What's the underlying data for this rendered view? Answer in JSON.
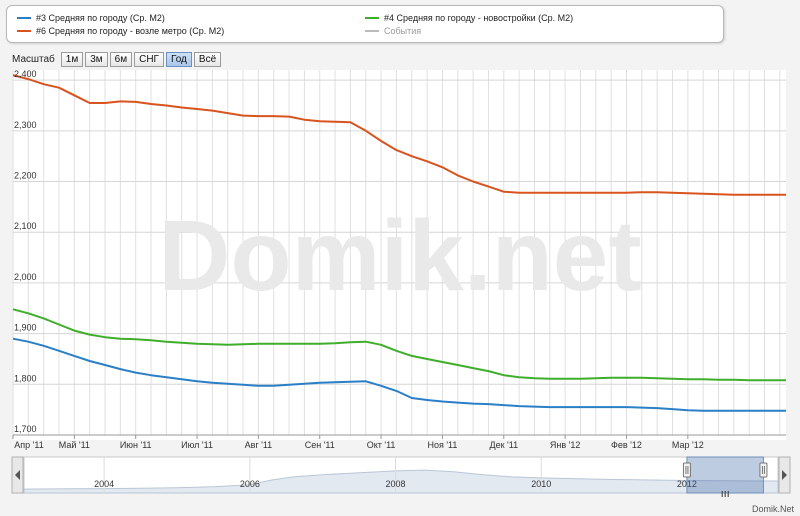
{
  "legend": {
    "items": [
      {
        "label": "#3 Средняя по городу (Ср. М2)",
        "color": "#2a7fc6"
      },
      {
        "label": "#4 Средняя по городу - новостройки (Ср. М2)",
        "color": "#3fae2a"
      },
      {
        "label": "#6 Средняя по городу - возле метро (Ср. М2)",
        "color": "#d9531e"
      },
      {
        "label": "События",
        "color": "#bbbbbb"
      }
    ]
  },
  "zoom": {
    "label": "Масштаб",
    "buttons": [
      "1м",
      "3м",
      "6м",
      "СНГ",
      "Год",
      "Всё"
    ],
    "active": "Год"
  },
  "watermark": "Domik.net",
  "credit": "Domik.Net",
  "chart_data": {
    "type": "line",
    "xlabel": "",
    "ylabel": "",
    "ylim": [
      1700,
      2420
    ],
    "yticks": [
      1700,
      1800,
      1900,
      2000,
      2100,
      2200,
      2300,
      2400
    ],
    "ytick_labels": [
      "1,700",
      "1,800",
      "1,900",
      "2,000",
      "2,100",
      "2,200",
      "2,300",
      "2,400"
    ],
    "xlim": [
      0,
      12.6
    ],
    "xticks": [
      0,
      1,
      2,
      3,
      4,
      5,
      6,
      7,
      8,
      9,
      10,
      11
    ],
    "xtick_labels": [
      "Апр '11",
      "Май '11",
      "Июн '11",
      "Июл '11",
      "Авг '11",
      "Сен '11",
      "Окт '11",
      "Ноя '11",
      "Дек '11",
      "Янв '12",
      "Фев '12",
      "Мар '12"
    ],
    "grid": true,
    "x": [
      0,
      0.25,
      0.5,
      0.75,
      1,
      1.25,
      1.5,
      1.75,
      2,
      2.25,
      2.5,
      2.75,
      3,
      3.25,
      3.5,
      3.75,
      4,
      4.25,
      4.5,
      4.75,
      5,
      5.25,
      5.5,
      5.75,
      6,
      6.25,
      6.5,
      6.75,
      7,
      7.25,
      7.5,
      7.75,
      8,
      8.25,
      8.5,
      8.75,
      9,
      9.25,
      9.5,
      9.75,
      10,
      10.25,
      10.5,
      10.75,
      11,
      11.25,
      11.5,
      11.75,
      12,
      12.25,
      12.6
    ],
    "series": [
      {
        "name": "#6 Средняя по городу - возле метро (Ср. М2)",
        "color": "#d9531e",
        "values": [
          2410,
          2402,
          2392,
          2385,
          2370,
          2355,
          2355,
          2358,
          2357,
          2353,
          2350,
          2346,
          2343,
          2340,
          2335,
          2330,
          2329,
          2329,
          2328,
          2322,
          2319,
          2318,
          2317,
          2300,
          2280,
          2262,
          2250,
          2240,
          2228,
          2212,
          2200,
          2190,
          2180,
          2178,
          2178,
          2178,
          2178,
          2178,
          2178,
          2178,
          2178,
          2179,
          2179,
          2178,
          2177,
          2176,
          2175,
          2174,
          2174,
          2174,
          2174
        ]
      },
      {
        "name": "#4 Средняя по городу - новостройки (Ср. М2)",
        "color": "#3fae2a",
        "values": [
          1948,
          1940,
          1930,
          1918,
          1906,
          1898,
          1893,
          1890,
          1889,
          1887,
          1884,
          1882,
          1880,
          1879,
          1878,
          1879,
          1880,
          1880,
          1880,
          1880,
          1880,
          1881,
          1883,
          1884,
          1878,
          1866,
          1856,
          1850,
          1844,
          1838,
          1832,
          1826,
          1818,
          1814,
          1812,
          1811,
          1811,
          1811,
          1812,
          1813,
          1813,
          1813,
          1812,
          1811,
          1810,
          1810,
          1809,
          1809,
          1808,
          1808,
          1808
        ]
      },
      {
        "name": "#3 Средняя по городу (Ср. М2)",
        "color": "#2a7fc6",
        "values": [
          1890,
          1884,
          1876,
          1866,
          1856,
          1846,
          1838,
          1830,
          1823,
          1818,
          1814,
          1810,
          1806,
          1803,
          1801,
          1799,
          1797,
          1797,
          1799,
          1801,
          1803,
          1804,
          1805,
          1806,
          1797,
          1787,
          1773,
          1769,
          1766,
          1764,
          1762,
          1761,
          1759,
          1757,
          1756,
          1755,
          1755,
          1755,
          1755,
          1755,
          1755,
          1754,
          1753,
          1751,
          1749,
          1748,
          1748,
          1748,
          1748,
          1748,
          1748
        ]
      }
    ]
  },
  "navigator": {
    "xtick_labels": [
      "2004",
      "2006",
      "2008",
      "2010",
      "2012"
    ],
    "xticks": [
      2004,
      2006,
      2008,
      2010,
      2012
    ],
    "xlim": [
      2002.9,
      2013.25
    ],
    "selection": [
      2012.0,
      2013.05
    ],
    "x": [
      2002.9,
      2003.5,
      2004,
      2004.5,
      2005,
      2005.5,
      2006,
      2006.3,
      2006.6,
      2007,
      2007.5,
      2008,
      2008.4,
      2008.8,
      2009.2,
      2009.6,
      2010,
      2010.5,
      2011,
      2011.5,
      2012,
      2012.5,
      2013.25
    ],
    "values": [
      0.15,
      0.16,
      0.17,
      0.18,
      0.2,
      0.24,
      0.32,
      0.5,
      0.62,
      0.7,
      0.78,
      0.85,
      0.88,
      0.82,
      0.7,
      0.62,
      0.58,
      0.55,
      0.52,
      0.5,
      0.48,
      0.47,
      0.46
    ]
  }
}
